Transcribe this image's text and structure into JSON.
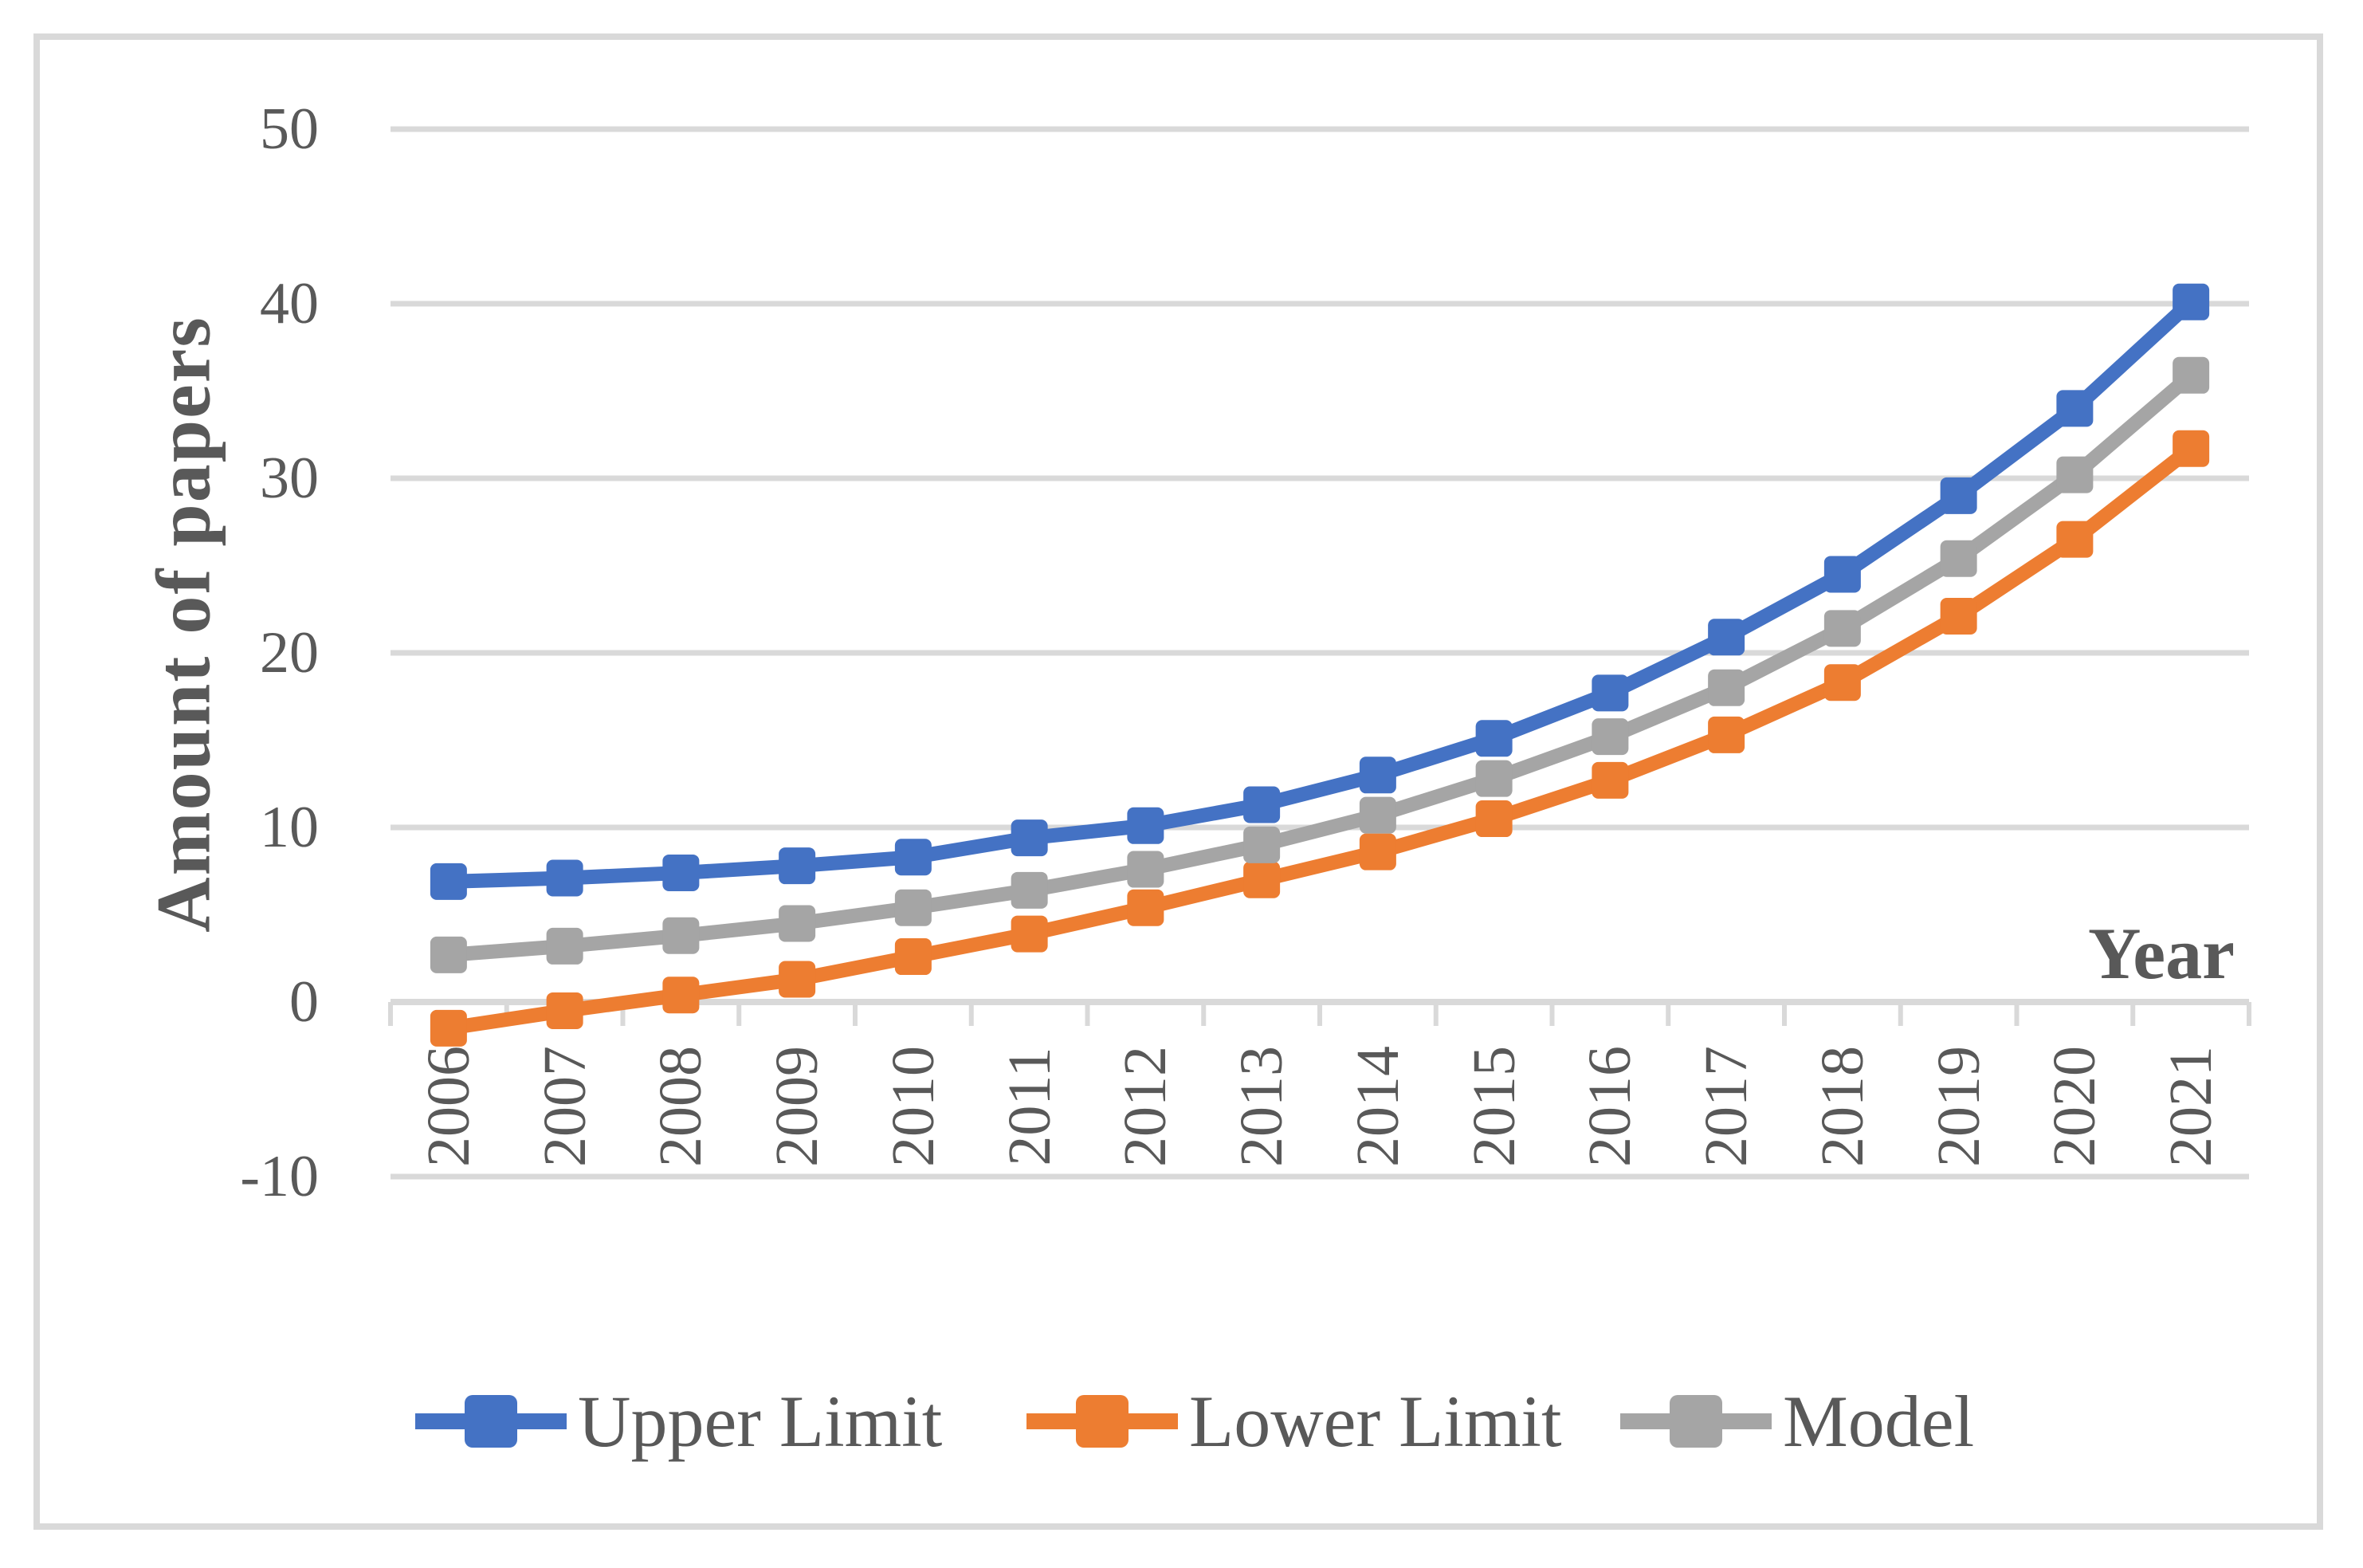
{
  "chart_data": {
    "type": "line",
    "title": "",
    "xlabel": "Year",
    "ylabel": "Amount of papers",
    "categories": [
      "2006",
      "2007",
      "2008",
      "2009",
      "2010",
      "2011",
      "2012",
      "2013",
      "2014",
      "2015",
      "2016",
      "2017",
      "2018",
      "2019",
      "2020",
      "2021"
    ],
    "y_ticks": [
      50,
      40,
      30,
      20,
      10,
      0,
      -10
    ],
    "ylim": [
      -10,
      50
    ],
    "grid": "horizontal",
    "legend_position": "bottom",
    "marker": "square",
    "series": [
      {
        "name": "Upper Limit",
        "color": "#4472C4",
        "values": [
          6.9,
          7.1,
          7.4,
          7.8,
          8.3,
          9.4,
          10.1,
          11.3,
          13.0,
          15.1,
          17.7,
          20.9,
          24.5,
          29.0,
          34.0,
          40.1
        ]
      },
      {
        "name": "Lower Limit",
        "color": "#ED7D31",
        "values": [
          -1.5,
          -0.5,
          0.4,
          1.3,
          2.6,
          3.9,
          5.4,
          7.0,
          8.6,
          10.5,
          12.7,
          15.3,
          18.3,
          22.1,
          26.5,
          31.7
        ]
      },
      {
        "name": "Model",
        "color": "#A5A5A5",
        "values": [
          2.7,
          3.2,
          3.8,
          4.5,
          5.4,
          6.4,
          7.6,
          9.0,
          10.7,
          12.8,
          15.2,
          18.0,
          21.4,
          25.4,
          30.2,
          35.9
        ]
      }
    ],
    "colors": {
      "gridline": "#D9D9D9",
      "axis_line": "#D9D9D9",
      "frame": "#D9D9D9",
      "text": "#595959",
      "background": "#FFFFFF"
    }
  }
}
